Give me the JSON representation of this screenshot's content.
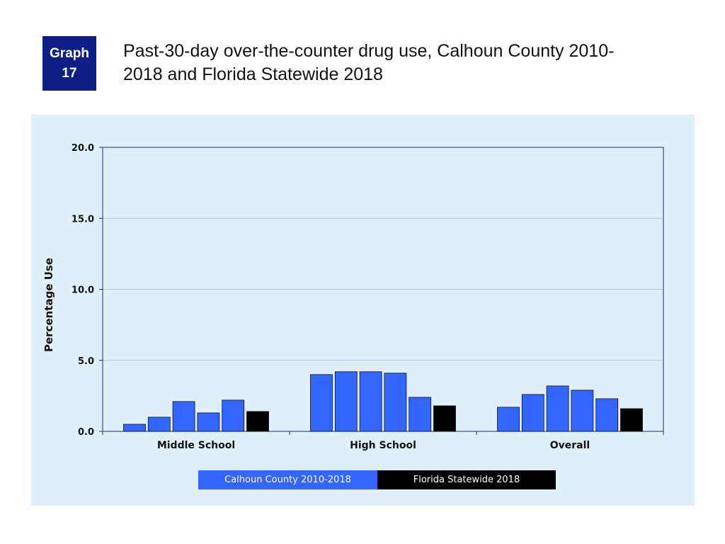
{
  "badge": {
    "line1": "Graph",
    "line2": "17"
  },
  "title_line1": "Past-30-day over-the-counter drug use, Calhoun County 2010-",
  "title_line2": "2018 and Florida Statewide 2018",
  "chart_data": {
    "type": "bar",
    "title": "",
    "xlabel": "",
    "ylabel": "Percentage Use",
    "ylim": [
      0,
      20
    ],
    "yticks": [
      "0.0",
      "5.0",
      "10.0",
      "15.0",
      "20.0"
    ],
    "grid": true,
    "legend_position": "bottom",
    "categories": [
      "Middle School",
      "High School",
      "Overall"
    ],
    "series": [
      {
        "name": "Calhoun County 2010-2018",
        "color": "#3366ff",
        "values": [
          0.5,
          4.0,
          1.7
        ]
      },
      {
        "color": "#3366ff",
        "values": [
          1.0,
          4.2,
          2.6
        ]
      },
      {
        "color": "#3366ff",
        "values": [
          2.1,
          4.2,
          3.2
        ]
      },
      {
        "color": "#3366ff",
        "values": [
          1.3,
          4.1,
          2.9
        ]
      },
      {
        "color": "#3366ff",
        "values": [
          2.2,
          2.4,
          2.3
        ]
      },
      {
        "name": "Florida Statewide 2018",
        "color": "#000000",
        "values": [
          1.4,
          1.8,
          1.6
        ]
      }
    ],
    "legend": [
      {
        "label": "Calhoun County 2010-2018",
        "color": "#3366ff"
      },
      {
        "label": "Florida Statewide 2018",
        "color": "#000000"
      }
    ]
  }
}
